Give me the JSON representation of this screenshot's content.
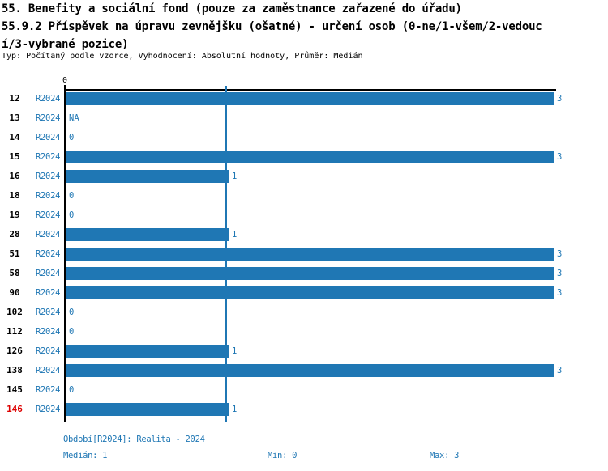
{
  "header": {
    "title_line1": "55. Benefity a sociální fond (pouze za zaměstnance zařazené do úřadu)",
    "title_line2": "55.9.2 Příspěvek na úpravu zevnějšku (ošatné) - určení osob (0-ne/1-všem/2-vedouc",
    "title_line3": "í/3-vybrané pozice)",
    "subtitle": "Typ: Počítaný podle vzorce, Vyhodnocení: Absolutní hodnoty, Průměr: Medián"
  },
  "chart_data": {
    "type": "bar",
    "orientation": "horizontal",
    "title": "55.9.2 Příspěvek na úpravu zevnějšku (ošatné) - určení osob (0-ne/1-všem/2-vedoucí/3-vybrané pozice)",
    "xlabel": "",
    "ylabel": "",
    "xlim": [
      0,
      3
    ],
    "x_tick_labels": [
      "0"
    ],
    "grid": false,
    "median_reference_line": 1,
    "period": "R2024",
    "categories": [
      "12",
      "13",
      "14",
      "15",
      "16",
      "18",
      "19",
      "28",
      "51",
      "58",
      "90",
      "102",
      "112",
      "126",
      "138",
      "145",
      "146"
    ],
    "values": [
      3,
      null,
      0,
      3,
      1,
      0,
      0,
      1,
      3,
      3,
      3,
      0,
      0,
      1,
      3,
      0,
      1
    ],
    "value_labels": [
      "3",
      "NA",
      "0",
      "3",
      "1",
      "0",
      "0",
      "1",
      "3",
      "3",
      "3",
      "0",
      "0",
      "1",
      "3",
      "0",
      "1"
    ],
    "rows": [
      {
        "id": "12",
        "period": "R2024",
        "value": 3,
        "label": "3",
        "highlight": false
      },
      {
        "id": "13",
        "period": "R2024",
        "value": null,
        "label": "NA",
        "highlight": false
      },
      {
        "id": "14",
        "period": "R2024",
        "value": 0,
        "label": "0",
        "highlight": false
      },
      {
        "id": "15",
        "period": "R2024",
        "value": 3,
        "label": "3",
        "highlight": false
      },
      {
        "id": "16",
        "period": "R2024",
        "value": 1,
        "label": "1",
        "highlight": false
      },
      {
        "id": "18",
        "period": "R2024",
        "value": 0,
        "label": "0",
        "highlight": false
      },
      {
        "id": "19",
        "period": "R2024",
        "value": 0,
        "label": "0",
        "highlight": false
      },
      {
        "id": "28",
        "period": "R2024",
        "value": 1,
        "label": "1",
        "highlight": false
      },
      {
        "id": "51",
        "period": "R2024",
        "value": 3,
        "label": "3",
        "highlight": false
      },
      {
        "id": "58",
        "period": "R2024",
        "value": 3,
        "label": "3",
        "highlight": false
      },
      {
        "id": "90",
        "period": "R2024",
        "value": 3,
        "label": "3",
        "highlight": false
      },
      {
        "id": "102",
        "period": "R2024",
        "value": 0,
        "label": "0",
        "highlight": false
      },
      {
        "id": "112",
        "period": "R2024",
        "value": 0,
        "label": "0",
        "highlight": false
      },
      {
        "id": "126",
        "period": "R2024",
        "value": 1,
        "label": "1",
        "highlight": false
      },
      {
        "id": "138",
        "period": "R2024",
        "value": 3,
        "label": "3",
        "highlight": false
      },
      {
        "id": "145",
        "period": "R2024",
        "value": 0,
        "label": "0",
        "highlight": false
      },
      {
        "id": "146",
        "period": "R2024",
        "value": 1,
        "label": "1",
        "highlight": true
      }
    ]
  },
  "footer": {
    "period_info": "Období[R2024]: Realita - 2024",
    "median_label": "Medián: 1",
    "min_label": "Min: 0",
    "max_label": "Max: 3"
  },
  "colors": {
    "bar": "#1f77b4",
    "accent_text": "#1f77b4",
    "axis": "#000000",
    "highlight_id": "#dd0000"
  }
}
